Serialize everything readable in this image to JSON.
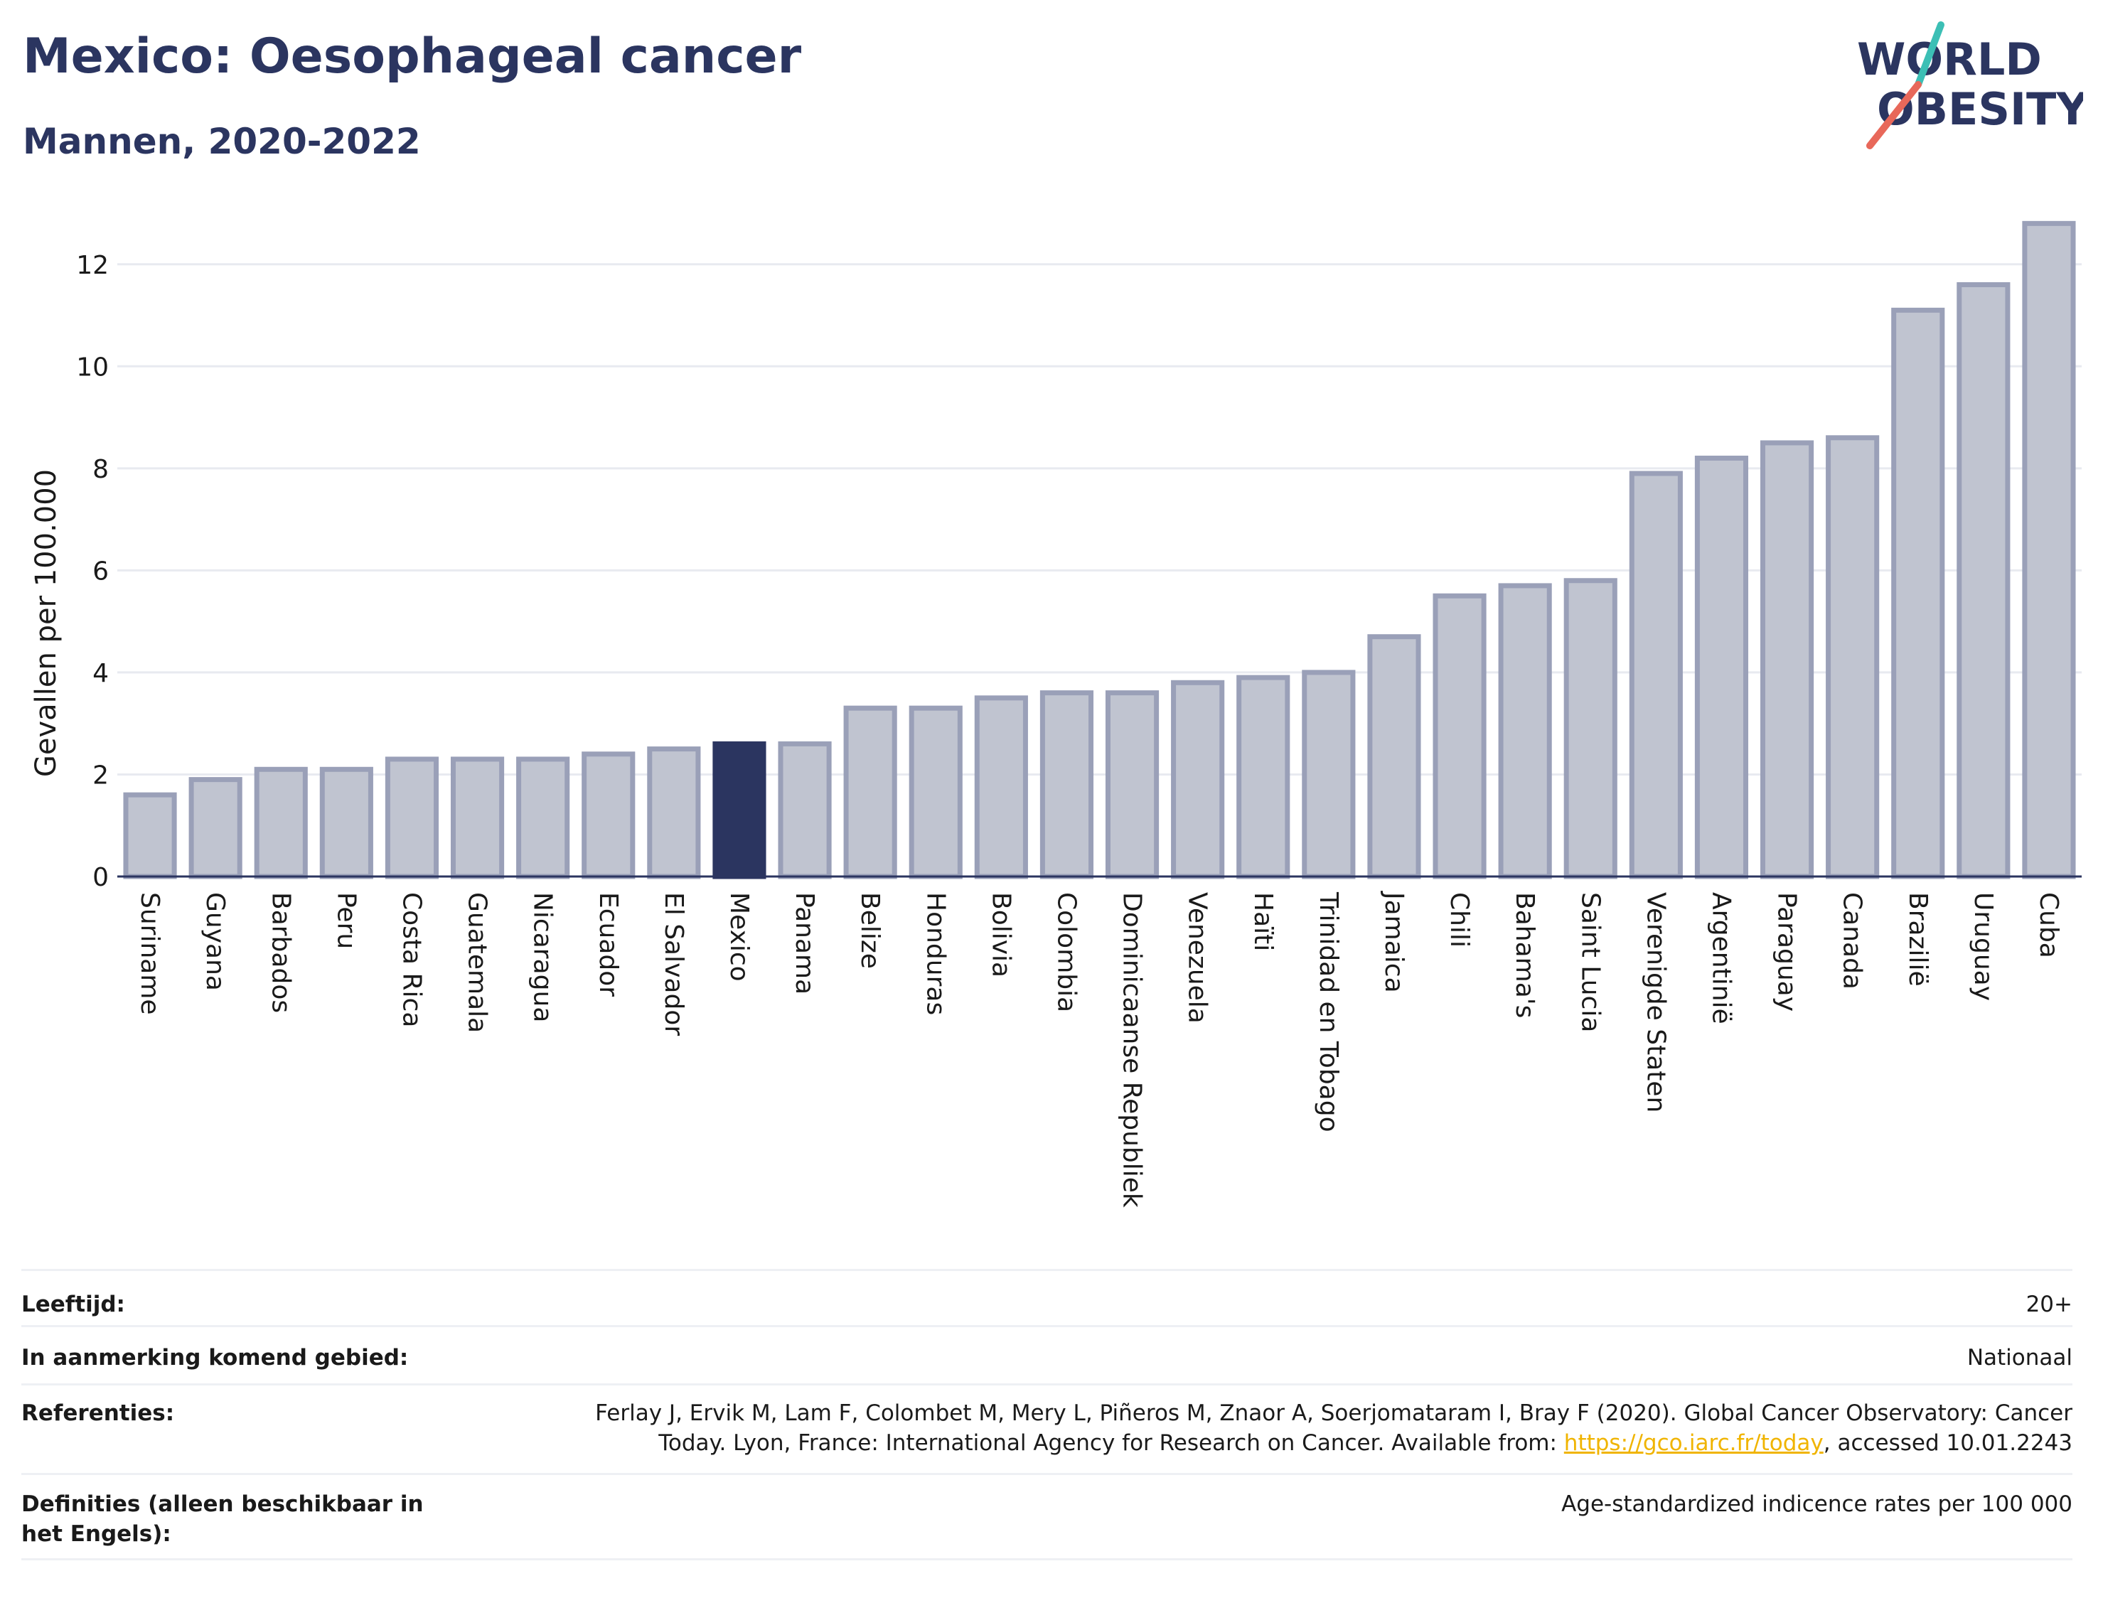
{
  "header": {
    "title": "Mexico: Oesophageal cancer",
    "subtitle": "Mannen, 2020-2022"
  },
  "logo": {
    "line1": "WORLD",
    "line2": "OBESITY",
    "text_color": "#2b3560",
    "slash_top_color": "#3cbfb5",
    "slash_bottom_color": "#e8685a"
  },
  "chart_data": {
    "type": "bar",
    "ylabel": "Gevallen per 100.000",
    "ylim": [
      0,
      13
    ],
    "yticks": [
      0,
      2,
      4,
      6,
      8,
      10,
      12
    ],
    "grid": true,
    "highlight": "Mexico",
    "bar_color": "#c0c4d0",
    "bar_edge_color": "#9aa0b8",
    "highlight_color": "#2b3560",
    "categories": [
      "Suriname",
      "Guyana",
      "Barbados",
      "Peru",
      "Costa Rica",
      "Guatemala",
      "Nicaragua",
      "Ecuador",
      "El Salvador",
      "Mexico",
      "Panama",
      "Belize",
      "Honduras",
      "Bolivia",
      "Colombia",
      "Dominicaanse Republiek",
      "Venezuela",
      "Haïti",
      "Trinidad en Tobago",
      "Jamaica",
      "Chili",
      "Bahama's",
      "Saint Lucia",
      "Verenigde Staten",
      "Argentinië",
      "Paraguay",
      "Canada",
      "Brazilië",
      "Uruguay",
      "Cuba"
    ],
    "values": [
      1.6,
      1.9,
      2.1,
      2.1,
      2.3,
      2.3,
      2.3,
      2.4,
      2.5,
      2.6,
      2.6,
      3.3,
      3.3,
      3.5,
      3.6,
      3.6,
      3.8,
      3.9,
      4.0,
      4.7,
      5.5,
      5.7,
      5.8,
      7.9,
      8.2,
      8.5,
      8.6,
      11.1,
      11.6,
      12.8
    ]
  },
  "info": {
    "age_label": "Leeftijd:",
    "age_value": "20+",
    "area_label": "In aanmerking komend gebied:",
    "area_value": "Nationaal",
    "refs_label": "Referenties:",
    "refs_text_1": "Ferlay J, Ervik M, Lam F, Colombet M, Mery L, Piñeros M, Znaor A, Soerjomataram I, Bray F (2020). Global Cancer Observatory: Cancer",
    "refs_text_2": "Today. Lyon, France: International Agency for Research on Cancer. Available from: ",
    "refs_link": "https://gco.iarc.fr/today",
    "refs_text_3": ", accessed 10.01.2243",
    "def_label": "Definities (alleen beschikbaar in het Engels):",
    "def_value": "Age-standardized indicence rates per 100 000"
  }
}
